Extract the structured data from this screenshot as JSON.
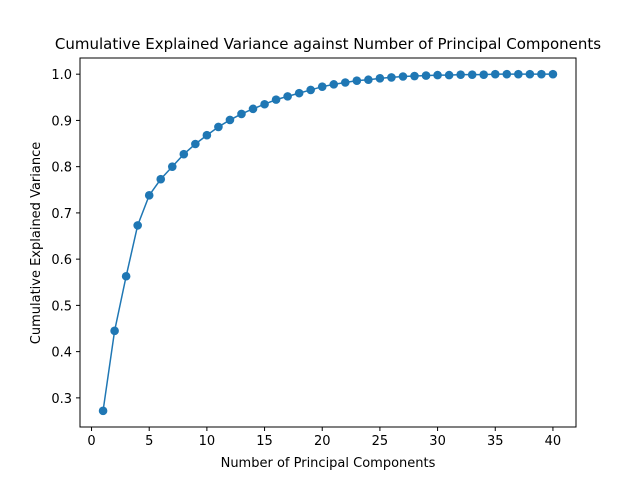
{
  "chart_data": {
    "type": "line",
    "title": "Cumulative Explained Variance against Number of Principal Components",
    "xlabel": "Number of Principal Components",
    "ylabel": "Cumulative Explained Variance",
    "xlim": [
      -1,
      42
    ],
    "ylim": [
      0.237,
      1.035
    ],
    "xticks": [
      0,
      5,
      10,
      15,
      20,
      25,
      30,
      35,
      40
    ],
    "yticks": [
      0.3,
      0.4,
      0.5,
      0.6,
      0.7,
      0.8,
      0.9,
      1.0
    ],
    "ytick_labels": [
      "0.3",
      "0.4",
      "0.5",
      "0.6",
      "0.7",
      "0.8",
      "0.9",
      "1.0"
    ],
    "grid": false,
    "series_color": "#1f77b4",
    "marker": "circle",
    "series": [
      {
        "x": [
          1,
          2,
          3,
          4,
          5,
          6,
          7,
          8,
          9,
          10,
          11,
          12,
          13,
          14,
          15,
          16,
          17,
          18,
          19,
          20,
          21,
          22,
          23,
          24,
          25,
          26,
          27,
          28,
          29,
          30,
          31,
          32,
          33,
          34,
          35,
          36,
          37,
          38,
          39,
          40
        ],
        "values": [
          0.272,
          0.445,
          0.563,
          0.673,
          0.738,
          0.773,
          0.8,
          0.827,
          0.849,
          0.868,
          0.886,
          0.901,
          0.914,
          0.925,
          0.935,
          0.945,
          0.952,
          0.959,
          0.966,
          0.973,
          0.978,
          0.982,
          0.986,
          0.988,
          0.991,
          0.993,
          0.995,
          0.996,
          0.997,
          0.998,
          0.998,
          0.999,
          0.999,
          0.999,
          1.0,
          1.0,
          1.0,
          1.0,
          1.0,
          1.0
        ]
      }
    ]
  }
}
